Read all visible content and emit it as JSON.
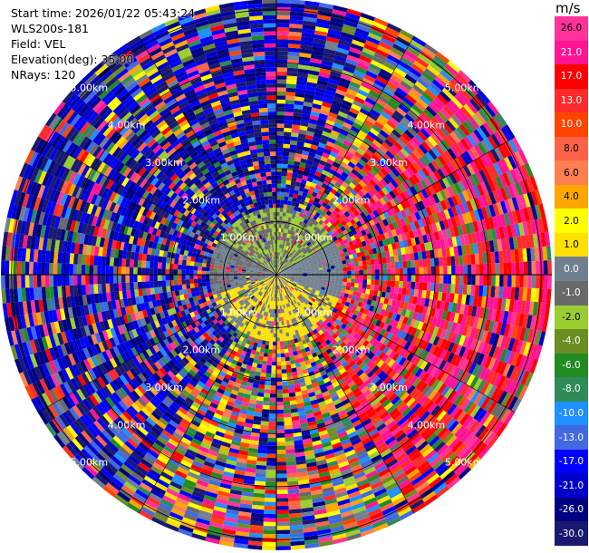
{
  "header": {
    "start_time": "Start time: 2026/01/22 05:43:24",
    "instrument": "WLS200s-181",
    "field": "Field: VEL",
    "elevation": "Elevation(deg): 35.00",
    "nrays": "NRays: 120"
  },
  "colorbar": {
    "unit": "m/s",
    "labels": [
      "26.0",
      "21.0",
      "17.0",
      "13.0",
      "10.0",
      "8.0",
      "6.0",
      "4.0",
      "2.0",
      "1.0",
      "0.0",
      "-1.0",
      "-2.0",
      "-4.0",
      "-6.0",
      "-8.0",
      "-10.0",
      "-13.0",
      "-17.0",
      "-21.0",
      "-26.0",
      "-30.0"
    ],
    "colors": [
      "#ff3399",
      "#ff1493",
      "#ff0000",
      "#ff2a2a",
      "#ff4500",
      "#ff6347",
      "#ff7f50",
      "#ffa500",
      "#ffff00",
      "#ffe000",
      "#708090",
      "#696969",
      "#9acd32",
      "#6b8e23",
      "#228b22",
      "#2e8b57",
      "#1e90ff",
      "#4169e1",
      "#0000ff",
      "#0000cd",
      "#000080",
      "#191970"
    ]
  },
  "chart_data": {
    "type": "heatmap",
    "subtype": "ppi-polar",
    "field": "VEL",
    "units": "m/s",
    "elevation_deg": 35.0,
    "nrays": 120,
    "range_rings_km": [
      1,
      2,
      3,
      4,
      5
    ],
    "ring_labels": [
      "1.00km",
      "2.00km",
      "3.00km",
      "4.00km",
      "5.00km"
    ],
    "max_range_km": 5.2,
    "color_scale_min": -30.0,
    "color_scale_max": 30.0,
    "inner_pattern": "near range (< ~1.2 km): green/olive (-1 to -4 m/s) toward north, grey (~0 m/s) west, yellow (2 to 4 m/s) toward south and south-east",
    "outer_pattern": "beyond ~1.5 km: noisy mixed values across full scale; dark navy (-21 to -30 m/s) dominant in north-west and south-west, pink (21 to 26 m/s) dominant in east"
  }
}
